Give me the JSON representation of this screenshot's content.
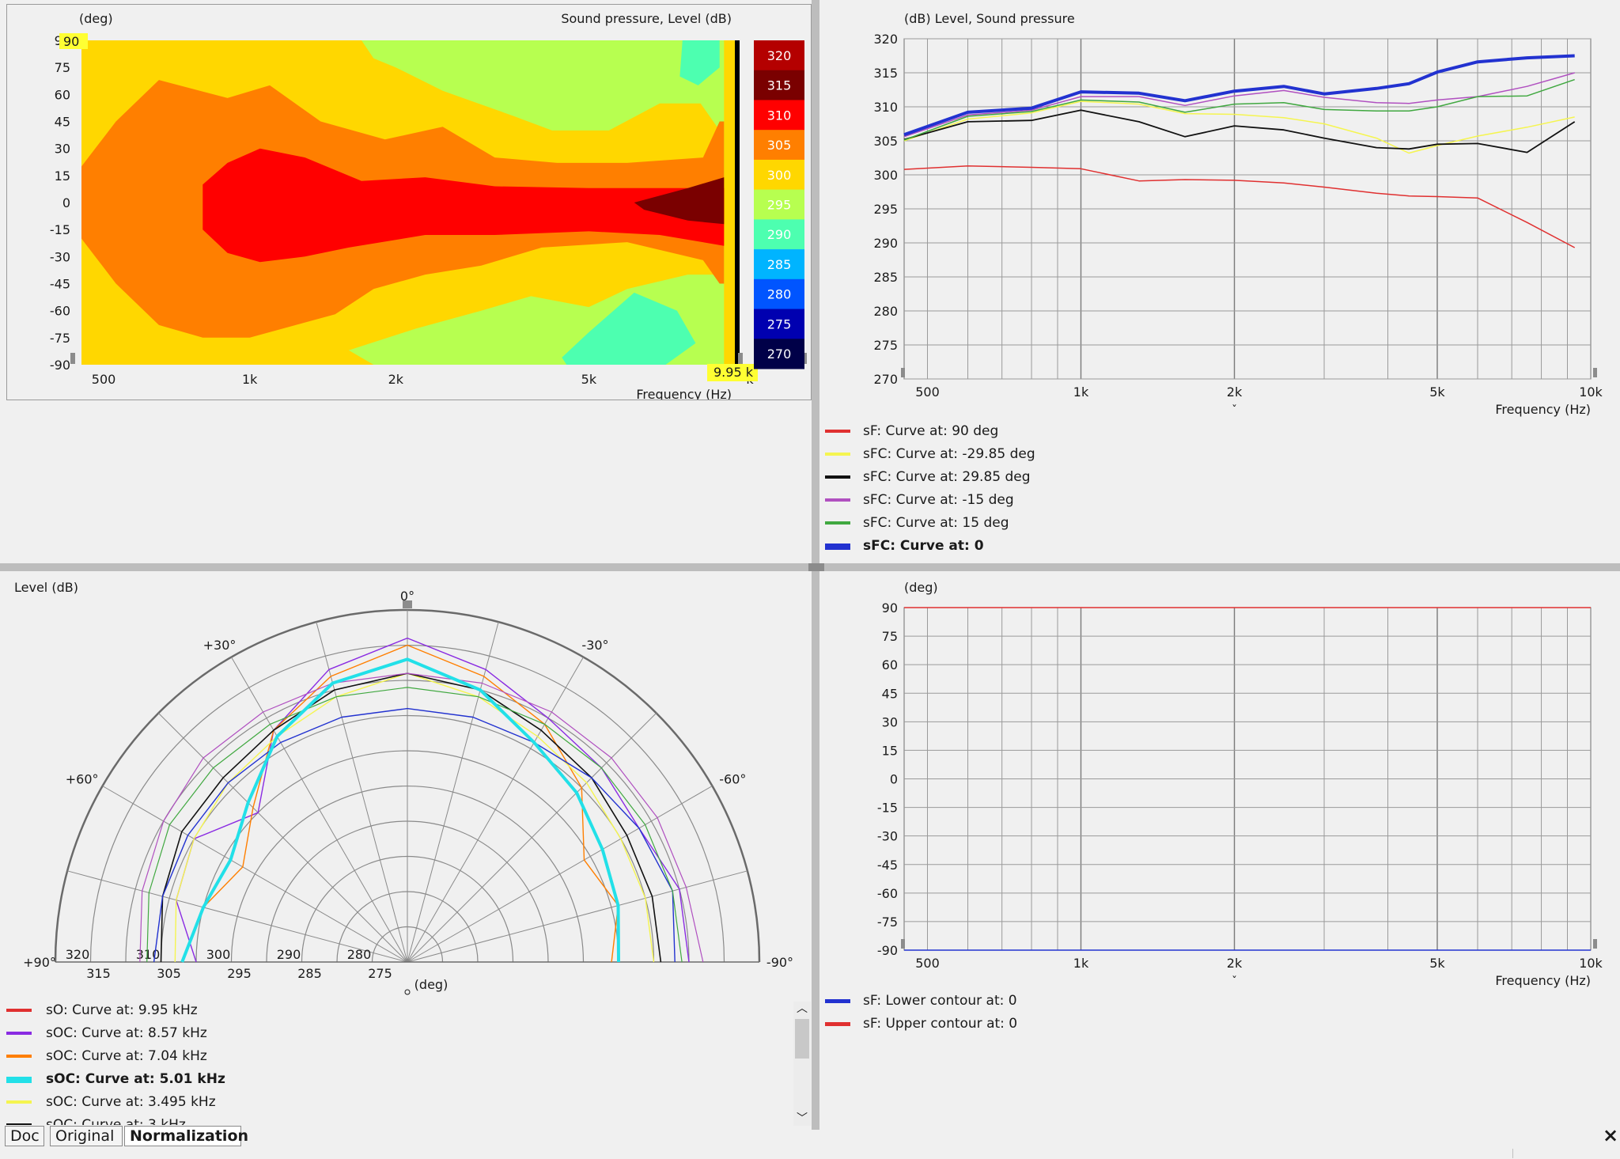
{
  "heatmap": {
    "y_label": "(deg)",
    "title": "Sound pressure, Level  (dB)",
    "x_label": "Frequency  (Hz)",
    "marker_top": "90",
    "marker_right": "9.95 k",
    "y_ticks": [
      "90",
      "75",
      "60",
      "45",
      "30",
      "15",
      "0",
      "-15",
      "-30",
      "-45",
      "-60",
      "-75",
      "-90"
    ],
    "x_ticks": [
      {
        "f": 500,
        "label": "500"
      },
      {
        "f": 1000,
        "label": "1k"
      },
      {
        "f": 2000,
        "label": "2k"
      },
      {
        "f": 5000,
        "label": "5k"
      }
    ],
    "x_tick_last": "k",
    "colorbar": [
      {
        "label": "320",
        "color": "#b40000"
      },
      {
        "label": "315",
        "color": "#7a0000"
      },
      {
        "label": "310",
        "color": "#ff0000"
      },
      {
        "label": "305",
        "color": "#ff7f00"
      },
      {
        "label": "300",
        "color": "#ffd700"
      },
      {
        "label": "295",
        "color": "#b7ff50"
      },
      {
        "label": "290",
        "color": "#4dffb0"
      },
      {
        "label": "285",
        "color": "#00b4ff"
      },
      {
        "label": "280",
        "color": "#0055ff"
      },
      {
        "label": "275",
        "color": "#0000b0"
      },
      {
        "label": "270",
        "color": "#000048"
      }
    ]
  },
  "chart_data": [
    {
      "type": "line",
      "title": "(dB)  Level, Sound pressure",
      "xlabel": "Frequency  (Hz)",
      "ylabel": "(dB)",
      "xscale": "log",
      "xlim": [
        450,
        10000
      ],
      "ylim": [
        270,
        320
      ],
      "x_ticks": [
        {
          "f": 500,
          "label": "500"
        },
        {
          "f": 1000,
          "label": "1k"
        },
        {
          "f": 2000,
          "label": "2k"
        },
        {
          "f": 5000,
          "label": "5k"
        },
        {
          "f": 10000,
          "label": "10k"
        }
      ],
      "y_ticks": [
        320,
        315,
        310,
        305,
        300,
        295,
        290,
        285,
        280,
        275,
        270
      ],
      "grid": true,
      "series": [
        {
          "name": "sF: Curve at: 90 deg",
          "color": "#e03030",
          "width": 1.5,
          "bold": false,
          "x": [
            450,
            600,
            800,
            1000,
            1300,
            1600,
            2000,
            2500,
            3000,
            3800,
            4400,
            5000,
            6000,
            7500,
            9300
          ],
          "y": [
            300.8,
            301.3,
            301.1,
            300.9,
            299.1,
            299.3,
            299.2,
            298.8,
            298.2,
            297.3,
            296.9,
            296.8,
            296.6,
            293.0,
            289.3
          ]
        },
        {
          "name": "sFC: Curve at: -29.85 deg",
          "color": "#f5f550",
          "width": 1.5,
          "bold": false,
          "x": [
            450,
            600,
            800,
            1000,
            1300,
            1600,
            2000,
            2500,
            3000,
            3800,
            4400,
            5000,
            6000,
            7500,
            9300
          ],
          "y": [
            305.0,
            308.2,
            309.1,
            310.8,
            310.4,
            309.0,
            308.9,
            308.4,
            307.5,
            305.4,
            303.2,
            304.3,
            305.7,
            307.0,
            308.5
          ]
        },
        {
          "name": "sFC: Curve at: 29.85 deg",
          "color": "#111111",
          "width": 1.8,
          "bold": false,
          "x": [
            450,
            600,
            800,
            1000,
            1300,
            1600,
            2000,
            2500,
            3000,
            3800,
            4400,
            5000,
            6000,
            7500,
            9300
          ],
          "y": [
            305.2,
            307.8,
            308.0,
            309.5,
            307.8,
            305.6,
            307.2,
            306.6,
            305.4,
            304.0,
            303.8,
            304.5,
            304.6,
            303.3,
            307.8
          ]
        },
        {
          "name": "sFC: Curve at: -15 deg",
          "color": "#b050c0",
          "width": 1.5,
          "bold": false,
          "x": [
            450,
            600,
            800,
            1000,
            1300,
            1600,
            2000,
            2500,
            3000,
            3800,
            4400,
            5000,
            6000,
            7500,
            9300
          ],
          "y": [
            305.6,
            308.8,
            309.5,
            311.5,
            311.5,
            310.2,
            311.6,
            312.4,
            311.4,
            310.6,
            310.5,
            311.0,
            311.5,
            313.0,
            315.0
          ]
        },
        {
          "name": "sFC: Curve at: 15 deg",
          "color": "#40a840",
          "width": 1.5,
          "bold": false,
          "x": [
            450,
            600,
            800,
            1000,
            1300,
            1600,
            2000,
            2500,
            3000,
            3800,
            4400,
            5000,
            6000,
            7500,
            9300
          ],
          "y": [
            305.1,
            308.6,
            309.3,
            311.0,
            310.7,
            309.2,
            310.4,
            310.6,
            309.6,
            309.4,
            309.4,
            310.0,
            311.5,
            311.6,
            314.0
          ]
        },
        {
          "name": "sFC: Curve at: 0",
          "color": "#2232d0",
          "width": 4,
          "bold": true,
          "x": [
            450,
            600,
            800,
            1000,
            1300,
            1600,
            2000,
            2500,
            3000,
            3800,
            4400,
            5000,
            6000,
            7500,
            9300
          ],
          "y": [
            305.9,
            309.2,
            309.8,
            312.2,
            312.0,
            310.9,
            312.3,
            313.0,
            311.9,
            312.7,
            313.4,
            315.1,
            316.6,
            317.2,
            317.5
          ]
        }
      ]
    },
    {
      "type": "polar",
      "ylabel": "Level  (dB)",
      "unit_label": "(deg)",
      "angle_labels": [
        {
          "a": 0,
          "label": "0°"
        },
        {
          "a": 30,
          "label": "+30°"
        },
        {
          "a": 60,
          "label": "+60°"
        },
        {
          "a": 90,
          "label": "+90°"
        },
        {
          "a": -30,
          "label": "-30°"
        },
        {
          "a": -60,
          "label": "-60°"
        },
        {
          "a": -90,
          "label": "-90°"
        }
      ],
      "r_range": [
        270,
        320
      ],
      "ring_labels_upper": [
        "320",
        "310",
        "300",
        "290",
        "280"
      ],
      "ring_labels_lower": [
        "315",
        "305",
        "295",
        "285",
        "275"
      ],
      "grid": true,
      "series": [
        {
          "name": "sO: Curve at: 9.95 kHz",
          "color": "#e03030",
          "width": 1.5,
          "bold": false,
          "values": []
        },
        {
          "name": "sOC: Curve at: 8.57 kHz",
          "color": "#8a2be2",
          "width": 1.4,
          "bold": false,
          "a": [
            -90,
            -75,
            -60,
            -45,
            -30,
            -15,
            0,
            15,
            30,
            45,
            60,
            75,
            90
          ],
          "r": [
            310,
            310,
            308,
            309,
            310,
            313,
            316,
            313,
            308,
            300,
            305,
            304,
            300
          ]
        },
        {
          "name": "sOC: Curve at: 7.04 kHz",
          "color": "#ff7f00",
          "width": 1.4,
          "bold": false,
          "a": [
            -90,
            -75,
            -60,
            -45,
            -30,
            -15,
            0,
            15,
            30,
            45,
            60,
            75,
            90
          ],
          "r": [
            299,
            301,
            299,
            305,
            309,
            312,
            315,
            312,
            308,
            301,
            297,
            300,
            302
          ]
        },
        {
          "name": "sOC: Curve at: 5.01 kHz",
          "color": "#22e0e8",
          "width": 4,
          "bold": true,
          "a": [
            -90,
            -75,
            -60,
            -45,
            -30,
            -15,
            0,
            15,
            30,
            45,
            60,
            75,
            90
          ],
          "r": [
            300,
            301,
            302,
            304,
            306,
            310,
            313,
            311,
            307,
            302,
            299,
            300,
            302
          ]
        },
        {
          "name": "sOC: Curve at: 3.495 kHz",
          "color": "#f5f550",
          "width": 1.4,
          "bold": false,
          "a": [
            -90,
            -75,
            -60,
            -45,
            -30,
            -15,
            0,
            15,
            30,
            45,
            60,
            75,
            90
          ],
          "r": [
            305,
            305,
            305,
            306,
            307,
            309,
            311,
            309,
            307,
            306,
            305,
            304,
            303
          ]
        },
        {
          "name": "sOC: Curve at: 3 kHz",
          "color": "#111111",
          "width": 1.6,
          "bold": false,
          "a": [
            -90,
            -75,
            -60,
            -45,
            -30,
            -15,
            0,
            15,
            30,
            45,
            60,
            75,
            90
          ],
          "r": [
            306,
            306,
            306,
            307,
            308,
            310,
            311,
            310,
            308,
            307,
            307,
            306,
            305
          ]
        },
        {
          "name": "",
          "color": "#2232d0",
          "width": 1.4,
          "bold": false,
          "a": [
            -90,
            -75,
            -60,
            -45,
            -30,
            -15,
            0,
            15,
            30,
            45,
            60,
            75,
            90
          ],
          "r": [
            308,
            309,
            308,
            307,
            306,
            306,
            306,
            306,
            306,
            306,
            306,
            306,
            306
          ]
        },
        {
          "name": "",
          "color": "#40a840",
          "width": 1.2,
          "bold": false,
          "a": [
            -90,
            -75,
            -60,
            -45,
            -30,
            -15,
            0,
            15,
            30,
            45,
            60,
            75,
            90
          ],
          "r": [
            309,
            309,
            309,
            309,
            309,
            309,
            309,
            309,
            309,
            309,
            309,
            308,
            307
          ]
        },
        {
          "name": "",
          "color": "#b050c0",
          "width": 1.2,
          "bold": false,
          "a": [
            -90,
            -75,
            -60,
            -45,
            -30,
            -15,
            0,
            15,
            30,
            45,
            60,
            75,
            90
          ],
          "r": [
            312,
            311,
            311,
            311,
            311,
            311,
            311,
            311,
            311,
            311,
            310,
            309,
            308
          ]
        }
      ]
    },
    {
      "type": "line",
      "ylabel": "(deg)",
      "xlabel": "Frequency  (Hz)",
      "xscale": "log",
      "xlim": [
        450,
        10000
      ],
      "ylim": [
        -90,
        90
      ],
      "x_ticks": [
        {
          "f": 500,
          "label": "500"
        },
        {
          "f": 1000,
          "label": "1k"
        },
        {
          "f": 2000,
          "label": "2k"
        },
        {
          "f": 5000,
          "label": "5k"
        },
        {
          "f": 10000,
          "label": "10k"
        }
      ],
      "y_ticks": [
        90,
        75,
        60,
        45,
        30,
        15,
        0,
        -15,
        -30,
        -45,
        -60,
        -75,
        -90
      ],
      "grid": true,
      "series": [
        {
          "name": "sF: Lower contour at: 0",
          "color": "#2232d0",
          "width": 1.5,
          "bold": false,
          "x": [
            450,
            10000
          ],
          "y": [
            -90,
            -90
          ]
        },
        {
          "name": "sF: Upper contour at: 0",
          "color": "#e03030",
          "width": 1.5,
          "bold": false,
          "x": [
            450,
            10000
          ],
          "y": [
            90,
            90
          ]
        }
      ]
    }
  ],
  "legend_tr": {
    "swatch_width_bold": 5
  },
  "legend_bl_partial": "sOC: Curve at: 3 kHz",
  "tabs": [
    {
      "label": "Doc",
      "active": false
    },
    {
      "label": "Original",
      "active": false
    },
    {
      "label": "Normalization",
      "active": true
    }
  ],
  "close_glyph": "×",
  "colors": {
    "panel_bg": "#f0f0f0",
    "grid": "#8c8c8c",
    "splitter": "#b8b8b8"
  }
}
